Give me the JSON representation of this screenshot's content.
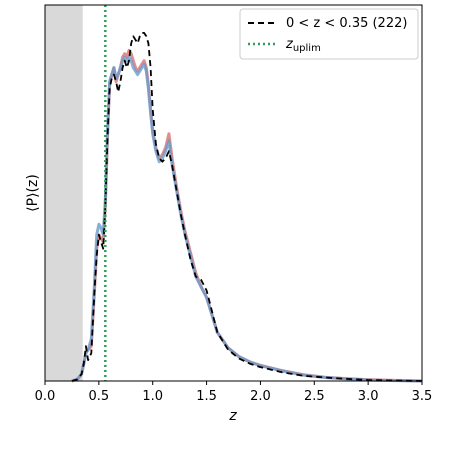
{
  "chart_data": {
    "type": "line",
    "xlabel": "z",
    "ylabel": "⟨P⟩(z)",
    "xlim": [
      0.0,
      3.5
    ],
    "ylim": [
      0,
      1.0
    ],
    "y_ticks_shown": false,
    "x_ticks": [
      "0.0",
      "0.5",
      "1.0",
      "1.5",
      "2.0",
      "2.5",
      "3.0",
      "3.5"
    ],
    "shaded_region": {
      "x": [
        0.0,
        0.35
      ],
      "color": "#d9d9d9"
    },
    "vertical_line": {
      "x": 0.56,
      "legend": "z",
      "legend_sub": "uplim",
      "color": "#2ca05a",
      "style": "dotted"
    },
    "legend_position": "top-right",
    "series": [
      {
        "name": "0 < z < 0.35 (222)",
        "color": "#000000",
        "style": "dashed",
        "x": [
          0.25,
          0.3,
          0.34,
          0.36,
          0.38,
          0.4,
          0.43,
          0.46,
          0.48,
          0.5,
          0.52,
          0.54,
          0.56,
          0.58,
          0.6,
          0.62,
          0.64,
          0.66,
          0.68,
          0.7,
          0.72,
          0.74,
          0.76,
          0.78,
          0.8,
          0.82,
          0.84,
          0.86,
          0.88,
          0.9,
          0.92,
          0.94,
          0.96,
          0.98,
          1.0,
          1.03,
          1.06,
          1.09,
          1.12,
          1.15,
          1.18,
          1.22,
          1.26,
          1.3,
          1.35,
          1.4,
          1.45,
          1.5,
          1.55,
          1.6,
          1.7,
          1.8,
          1.9,
          2.0,
          2.2,
          2.4,
          2.6,
          2.8,
          3.0,
          3.2,
          3.5
        ],
        "y": [
          0.0,
          0.005,
          0.02,
          0.05,
          0.1,
          0.06,
          0.08,
          0.26,
          0.36,
          0.42,
          0.4,
          0.38,
          0.5,
          0.7,
          0.84,
          0.87,
          0.88,
          0.86,
          0.83,
          0.86,
          0.9,
          0.92,
          0.9,
          0.92,
          0.97,
          0.99,
          0.98,
          0.97,
          0.99,
          1.0,
          1.0,
          0.99,
          0.97,
          0.9,
          0.78,
          0.68,
          0.64,
          0.63,
          0.64,
          0.66,
          0.62,
          0.55,
          0.48,
          0.42,
          0.35,
          0.3,
          0.29,
          0.26,
          0.2,
          0.14,
          0.09,
          0.065,
          0.05,
          0.04,
          0.025,
          0.015,
          0.01,
          0.006,
          0.003,
          0.0015,
          0.0
        ]
      },
      {
        "name": "",
        "color": "#d9706f",
        "style": "solid",
        "x": [
          0.25,
          0.3,
          0.34,
          0.36,
          0.38,
          0.4,
          0.43,
          0.46,
          0.48,
          0.5,
          0.52,
          0.54,
          0.56,
          0.58,
          0.6,
          0.62,
          0.64,
          0.66,
          0.68,
          0.7,
          0.72,
          0.74,
          0.76,
          0.78,
          0.8,
          0.82,
          0.84,
          0.86,
          0.88,
          0.9,
          0.92,
          0.94,
          0.96,
          0.98,
          1.0,
          1.03,
          1.06,
          1.09,
          1.12,
          1.15,
          1.18,
          1.22,
          1.26,
          1.3,
          1.35,
          1.4,
          1.45,
          1.5,
          1.55,
          1.6,
          1.7,
          1.8,
          1.9,
          2.0,
          2.2,
          2.4,
          2.6,
          2.8,
          3.0,
          3.2,
          3.5
        ],
        "y": [
          0.0,
          0.005,
          0.02,
          0.05,
          0.08,
          0.09,
          0.1,
          0.26,
          0.38,
          0.42,
          0.41,
          0.4,
          0.5,
          0.7,
          0.85,
          0.88,
          0.9,
          0.86,
          0.88,
          0.9,
          0.93,
          0.94,
          0.93,
          0.95,
          0.94,
          0.92,
          0.9,
          0.89,
          0.9,
          0.91,
          0.92,
          0.9,
          0.85,
          0.78,
          0.72,
          0.67,
          0.64,
          0.65,
          0.67,
          0.71,
          0.64,
          0.56,
          0.49,
          0.43,
          0.37,
          0.31,
          0.27,
          0.24,
          0.19,
          0.14,
          0.095,
          0.07,
          0.055,
          0.045,
          0.03,
          0.018,
          0.011,
          0.007,
          0.004,
          0.002,
          0.0
        ]
      },
      {
        "name": "",
        "color": "#6a9bcc",
        "style": "solid",
        "x": [
          0.25,
          0.3,
          0.34,
          0.36,
          0.38,
          0.4,
          0.43,
          0.46,
          0.48,
          0.5,
          0.52,
          0.54,
          0.56,
          0.58,
          0.6,
          0.62,
          0.64,
          0.66,
          0.68,
          0.7,
          0.72,
          0.74,
          0.76,
          0.78,
          0.8,
          0.82,
          0.84,
          0.86,
          0.88,
          0.9,
          0.92,
          0.94,
          0.96,
          0.98,
          1.0,
          1.03,
          1.06,
          1.09,
          1.12,
          1.15,
          1.18,
          1.22,
          1.26,
          1.3,
          1.35,
          1.4,
          1.45,
          1.5,
          1.55,
          1.6,
          1.7,
          1.8,
          1.9,
          2.0,
          2.2,
          2.4,
          2.6,
          2.8,
          3.0,
          3.2,
          3.5
        ],
        "y": [
          0.0,
          0.005,
          0.02,
          0.05,
          0.08,
          0.09,
          0.12,
          0.28,
          0.42,
          0.45,
          0.44,
          0.42,
          0.52,
          0.72,
          0.86,
          0.88,
          0.9,
          0.87,
          0.88,
          0.9,
          0.92,
          0.93,
          0.92,
          0.93,
          0.92,
          0.9,
          0.89,
          0.88,
          0.89,
          0.9,
          0.91,
          0.89,
          0.84,
          0.77,
          0.71,
          0.66,
          0.63,
          0.64,
          0.66,
          0.69,
          0.62,
          0.55,
          0.48,
          0.42,
          0.36,
          0.3,
          0.27,
          0.24,
          0.19,
          0.14,
          0.095,
          0.07,
          0.055,
          0.044,
          0.029,
          0.017,
          0.01,
          0.006,
          0.003,
          0.0015,
          0.0
        ]
      }
    ]
  }
}
